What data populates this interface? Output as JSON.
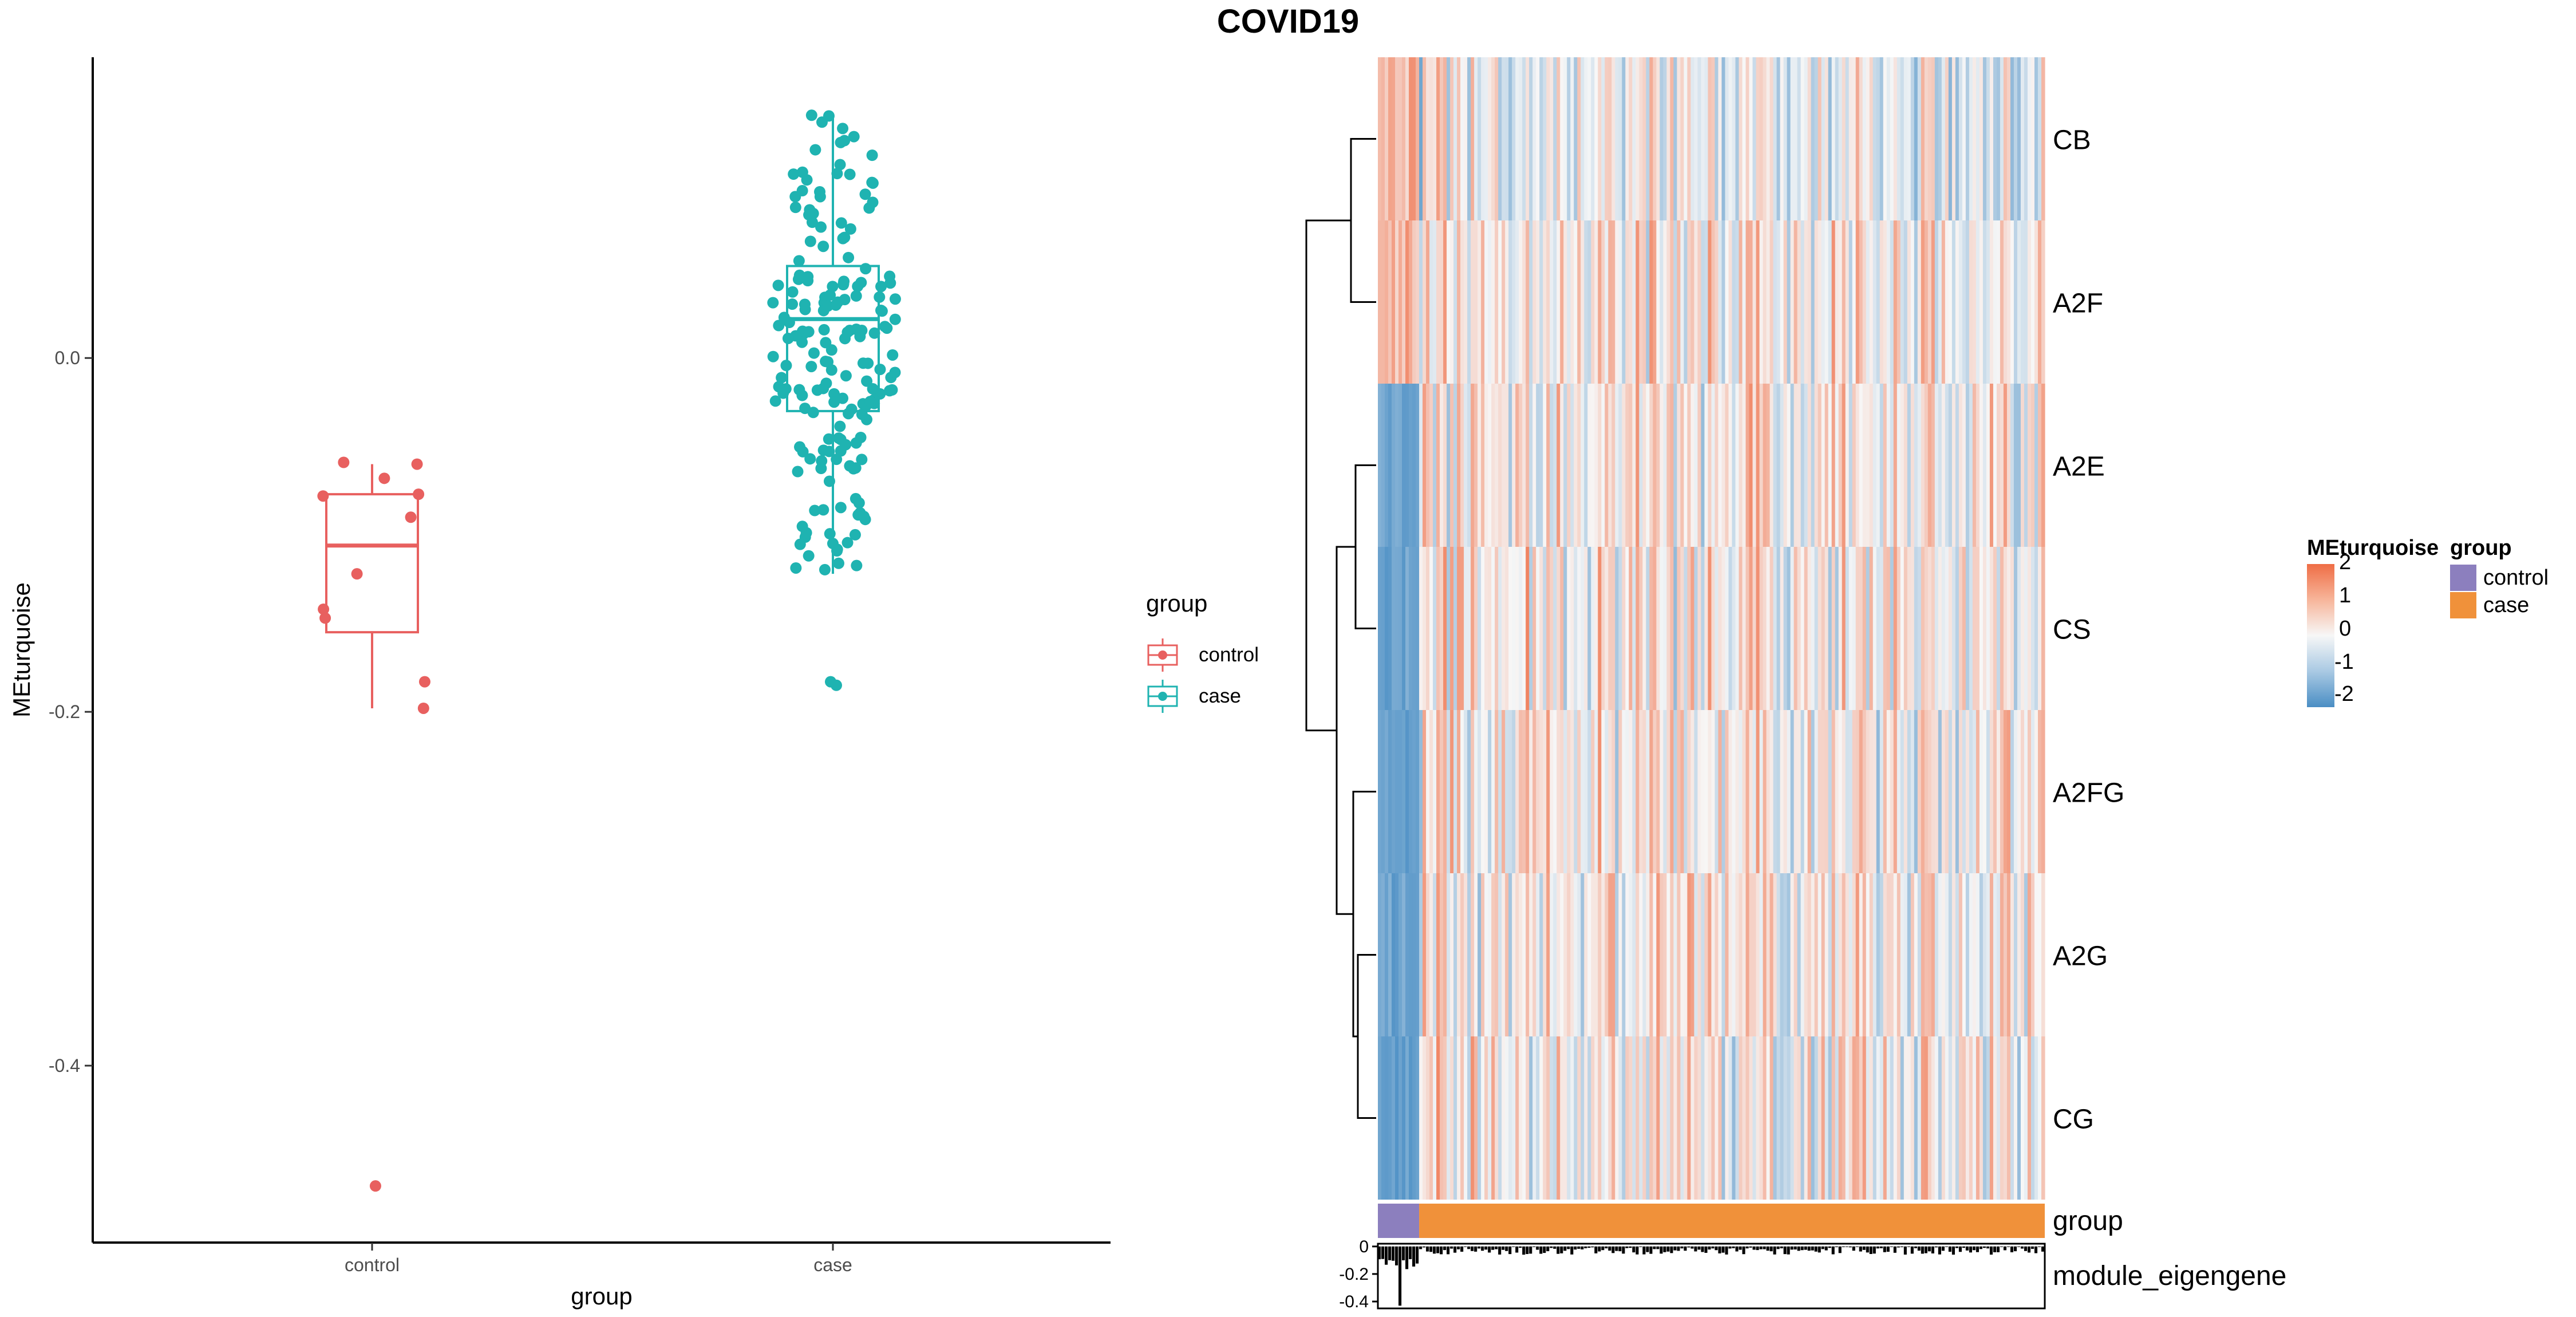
{
  "figure_title": "COVID19",
  "colors": {
    "control": "#e8605f",
    "case": "#1fb3b1",
    "heat_low": "#4a8ec4",
    "heat_mid": "#f7f7f7",
    "heat_high": "#ef6d45",
    "group_control": "#8c7fbe",
    "group_case": "#f0913a"
  },
  "chart_data": [
    {
      "type": "boxplot",
      "xlabel": "group",
      "ylabel": "MEturquoise",
      "categories": [
        "control",
        "case"
      ],
      "ylim": [
        -0.5,
        0.17
      ],
      "yticks": [
        0.0,
        -0.2,
        -0.4
      ],
      "legend": {
        "title": "group",
        "entries": [
          "control",
          "case"
        ],
        "placement": "right"
      },
      "series": [
        {
          "name": "control",
          "box": {
            "q1": -0.155,
            "median": -0.106,
            "q3": -0.077,
            "whisker_low": -0.198,
            "whisker_high": -0.06
          },
          "points": [
            -0.059,
            -0.06,
            -0.068,
            -0.077,
            -0.078,
            -0.09,
            -0.122,
            -0.142,
            -0.147,
            -0.183,
            -0.198,
            -0.468
          ]
        },
        {
          "name": "case",
          "box": {
            "q1": -0.03,
            "median": 0.022,
            "q3": 0.052,
            "whisker_low": -0.122,
            "whisker_high": 0.138
          },
          "outliers": [
            -0.183,
            -0.185
          ]
        }
      ]
    },
    {
      "type": "heatmap",
      "rows": [
        "CB",
        "A2F",
        "A2E",
        "CS",
        "A2FG",
        "A2G",
        "CG"
      ],
      "color_scale": {
        "title": "MEturquoise",
        "ticks": [
          "2",
          "1",
          "0",
          "-1",
          "-2"
        ]
      },
      "group_annotation": {
        "label": "group",
        "legend_title": "group",
        "levels": [
          "control",
          "case"
        ],
        "counts": [
          12,
          182
        ]
      },
      "eigengene_bar": {
        "label": "module_eigengene",
        "yticks": [
          "0",
          "-0.2",
          "-0.4"
        ],
        "ylim": [
          -0.45,
          0.02
        ]
      }
    }
  ]
}
